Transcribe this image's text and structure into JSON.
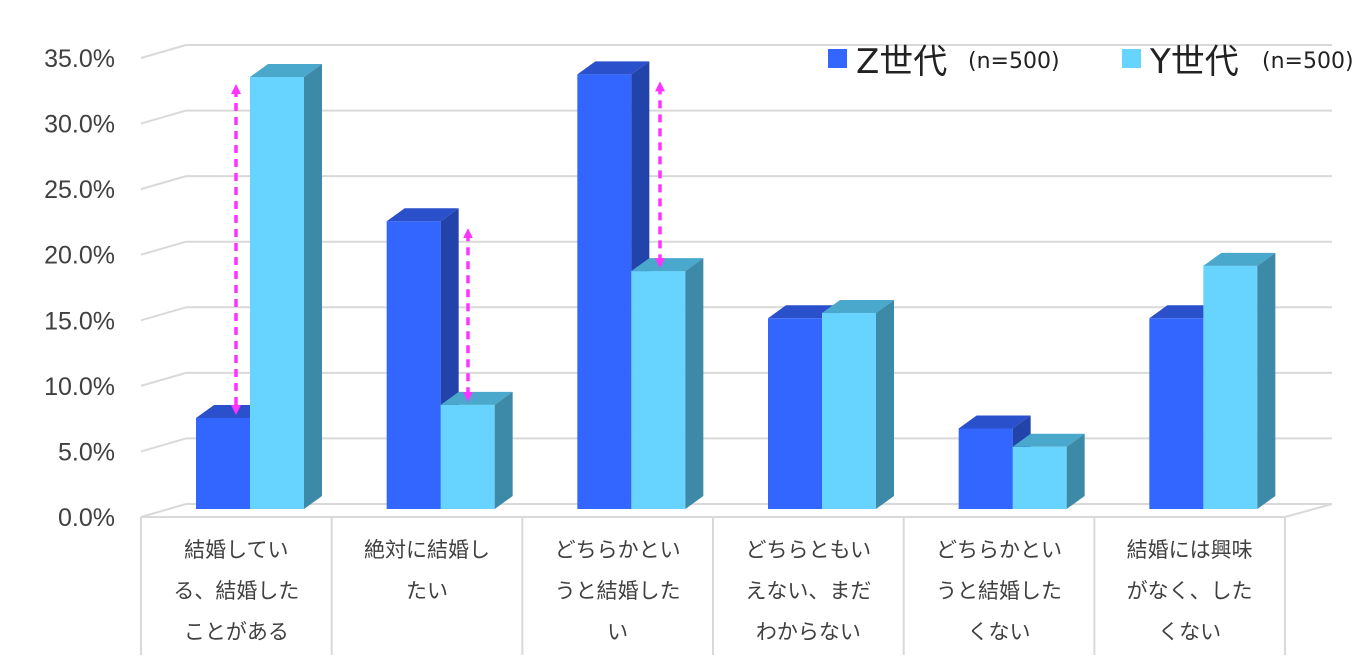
{
  "chart_data": {
    "type": "bar",
    "title": "",
    "xlabel": "",
    "ylabel": "",
    "ylim": [
      0,
      35
    ],
    "y_ticks": [
      "0.0%",
      "5.0%",
      "10.0%",
      "15.0%",
      "20.0%",
      "25.0%",
      "30.0%",
      "35.0%"
    ],
    "y_tick_values": [
      0,
      5,
      10,
      15,
      20,
      25,
      30,
      35
    ],
    "grid": true,
    "legend_position": "top-right",
    "categories": [
      [
        "結婚してい",
        "る、結婚した",
        "ことがある"
      ],
      [
        "絶対に結婚し",
        "たい"
      ],
      [
        "どちらかとい",
        "うと結婚した",
        "い"
      ],
      [
        "どちらともい",
        "えない、まだ",
        "わからない"
      ],
      [
        "どちらかとい",
        "うと結婚した",
        "くない"
      ],
      [
        "結婚には興味",
        "がなく、した",
        "くない"
      ]
    ],
    "series": [
      {
        "name": "Z世代",
        "name_suffix": "(n=500)",
        "color": "#3366ff",
        "values": [
          7.4,
          22.4,
          33.6,
          15.0,
          6.6,
          15.0
        ]
      },
      {
        "name": "Y世代",
        "name_suffix": "(n=500)",
        "color": "#66d4ff",
        "values": [
          33.4,
          8.4,
          18.6,
          15.4,
          5.2,
          19.0
        ]
      }
    ],
    "difference_arrows": [
      {
        "category_index": 0,
        "color": "#ff33ff",
        "from": 7.4,
        "to": 33.4
      },
      {
        "category_index": 1,
        "color": "#ff33ff",
        "from": 8.4,
        "to": 22.4
      },
      {
        "category_index": 2,
        "color": "#ff33ff",
        "from": 18.6,
        "to": 33.6
      }
    ]
  }
}
